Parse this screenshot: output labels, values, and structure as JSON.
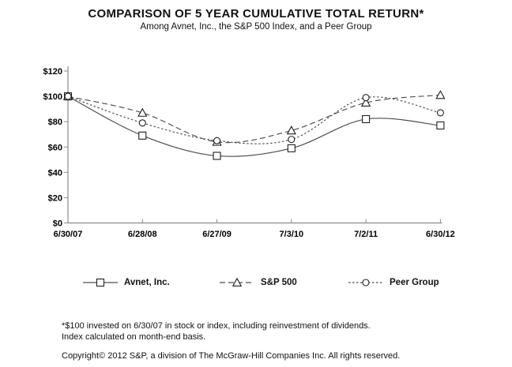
{
  "header": {
    "title": "COMPARISON OF 5 YEAR CUMULATIVE TOTAL RETURN*",
    "subtitle": "Among Avnet, Inc., the S&P 500 Index, and a Peer Group"
  },
  "chart_data": {
    "type": "line",
    "categories": [
      "6/30/07",
      "6/28/08",
      "6/27/09",
      "7/3/10",
      "7/2/11",
      "6/30/12"
    ],
    "series": [
      {
        "name": "Avnet, Inc.",
        "marker": "square",
        "line_style": "solid",
        "values": [
          100,
          69,
          53,
          59,
          82,
          77
        ]
      },
      {
        "name": "S&P 500",
        "marker": "triangle",
        "line_style": "dashed",
        "values": [
          100,
          87,
          64,
          73,
          95,
          101
        ]
      },
      {
        "name": "Peer Group",
        "marker": "circle",
        "line_style": "dotted",
        "values": [
          100,
          79,
          65,
          66,
          99,
          87
        ]
      }
    ],
    "ylim": [
      0,
      120
    ],
    "y_tick_step": 20,
    "y_tick_prefix": "$",
    "y_tick_labels": [
      "$0",
      "$20",
      "$40",
      "$60",
      "$80",
      "$100",
      "$120"
    ],
    "grid": false,
    "legend_position": "bottom",
    "line_smoothing": true
  },
  "footnotes": {
    "line1": "*$100 invested on 6/30/07 in stock or index, including reinvestment of dividends.",
    "line2": "Index calculated on month-end basis.",
    "copyright": "Copyright© 2012 S&P, a division of The McGraw-Hill Companies Inc. All rights reserved."
  },
  "colors": {
    "background": "#ffffff",
    "text": "#000000",
    "axis": "#8c8c8c",
    "series_line": "#4d4d4d",
    "marker_stroke": "#1f1f1f",
    "marker_fill": "#ffffff"
  }
}
